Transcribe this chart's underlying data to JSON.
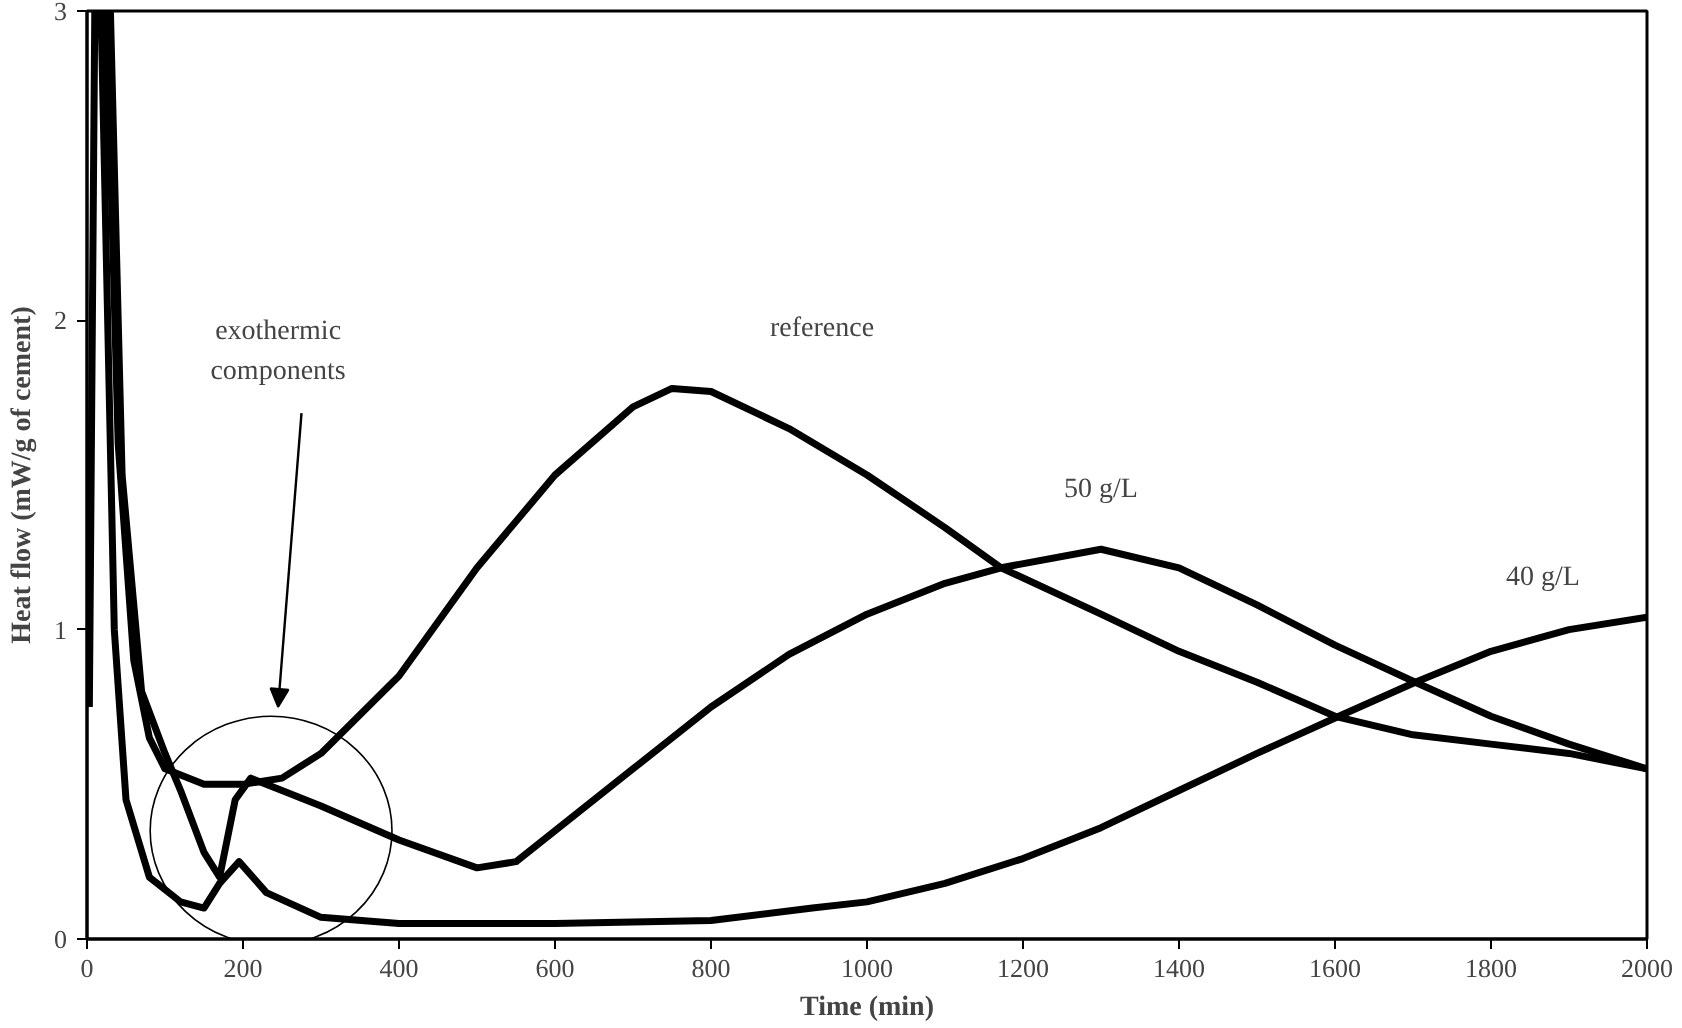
{
  "chart_data": {
    "type": "line",
    "xlabel": "Time (min)",
    "ylabel": "Heat flow (mW/g of cement)",
    "xlim": [
      0,
      2000
    ],
    "ylim": [
      0,
      3
    ],
    "xticks": [
      0,
      200,
      400,
      600,
      800,
      1000,
      1200,
      1400,
      1600,
      1800,
      2000
    ],
    "yticks": [
      0,
      1,
      2,
      3
    ],
    "grid": false,
    "legend": false,
    "marker": "none",
    "line_style": "solid",
    "annotations": [
      "exothermic components"
    ],
    "series": [
      {
        "name": "reference",
        "color": "#000000",
        "x": [
          25,
          40,
          60,
          80,
          100,
          150,
          200,
          250,
          300,
          400,
          500,
          600,
          700,
          750,
          800,
          900,
          1000,
          1100,
          1172,
          1300,
          1400,
          1500,
          1600,
          1700,
          1800,
          1900,
          2000
        ],
        "values": [
          3,
          1.6,
          0.9,
          0.65,
          0.55,
          0.5,
          0.5,
          0.52,
          0.6,
          0.85,
          1.2,
          1.5,
          1.72,
          1.78,
          1.77,
          1.65,
          1.5,
          1.33,
          1.2,
          1.05,
          0.93,
          0.83,
          0.72,
          0.66,
          0.63,
          0.6,
          0.55
        ]
      },
      {
        "name": "50 g/L",
        "color": "#000000",
        "x": [
          30,
          45,
          70,
          100,
          120,
          150,
          170,
          190,
          210,
          250,
          300,
          400,
          500,
          550,
          600,
          700,
          800,
          900,
          1000,
          1100,
          1172,
          1300,
          1400,
          1500,
          1600,
          1703,
          1800,
          1900,
          2000
        ],
        "values": [
          3,
          1.5,
          0.8,
          0.6,
          0.48,
          0.28,
          0.2,
          0.45,
          0.52,
          0.48,
          0.43,
          0.32,
          0.23,
          0.25,
          0.35,
          0.55,
          0.75,
          0.92,
          1.05,
          1.15,
          1.2,
          1.26,
          1.2,
          1.08,
          0.95,
          0.83,
          0.72,
          0.63,
          0.55
        ]
      },
      {
        "name": "40 g/L",
        "color": "#000000",
        "x": [
          3,
          10,
          18,
          35,
          50,
          80,
          120,
          150,
          170,
          195,
          230,
          300,
          400,
          600,
          800,
          930,
          1000,
          1100,
          1200,
          1300,
          1400,
          1500,
          1605,
          1703,
          1800,
          1900,
          2000
        ],
        "values": [
          0.75,
          3,
          3,
          1.0,
          0.45,
          0.2,
          0.12,
          0.1,
          0.18,
          0.25,
          0.15,
          0.07,
          0.05,
          0.05,
          0.06,
          0.1,
          0.12,
          0.18,
          0.26,
          0.36,
          0.48,
          0.6,
          0.72,
          0.83,
          0.93,
          1.0,
          1.04
        ]
      }
    ]
  }
}
